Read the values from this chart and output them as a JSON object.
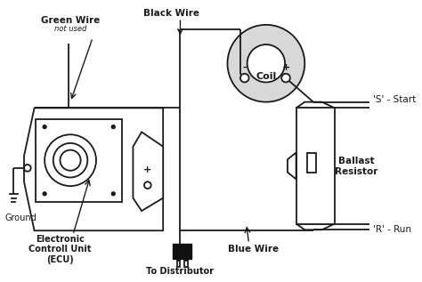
{
  "bg_color": "#ffffff",
  "line_color": "#1a1a1a",
  "text_color": "#1a1a1a",
  "labels": {
    "green_wire": "Green Wire",
    "not_used": "not used",
    "black_wire": "Black Wire",
    "coil": "Coil",
    "s_start": "'S' - Start",
    "ballast_resistor": "Ballast\nResistor",
    "r_run": "'R' - Run",
    "blue_wire": "Blue Wire",
    "to_distributor": "To Distributor",
    "ecu": "Electronic\nControll Unit\n(ECU)",
    "ground": "Ground"
  }
}
